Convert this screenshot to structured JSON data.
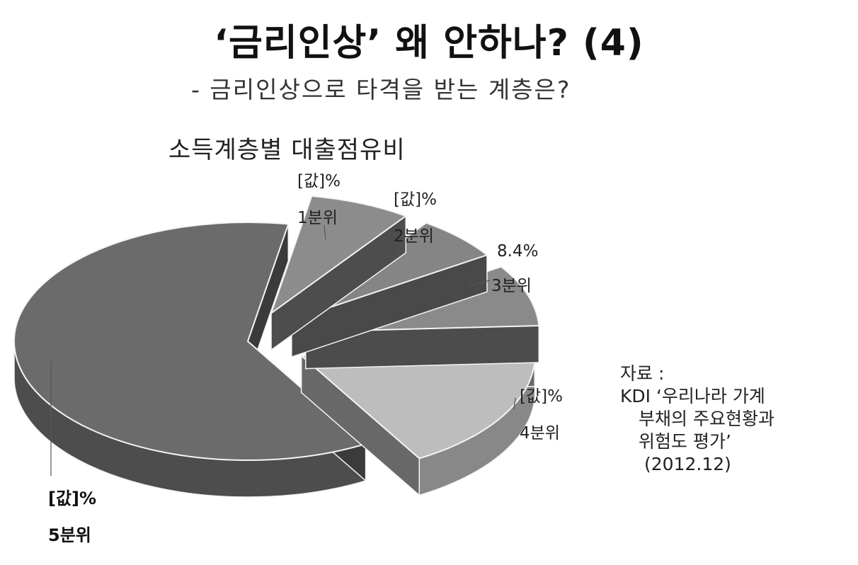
{
  "header": {
    "title": "‘금리인상’  왜 안하나? (4)",
    "subtitle": "- 금리인상으로 타격을 받는 계층은?"
  },
  "chart_data": {
    "type": "pie",
    "title": "소득계층별 대출점유비",
    "style": "3d-exploded",
    "categories": [
      "1분위",
      "2분위",
      "3분위",
      "4분위",
      "5분위"
    ],
    "values": [
      7.0,
      6.0,
      8.4,
      17.4,
      61.2
    ],
    "data_labels": [
      "[값]%",
      "[값]%",
      "8.4%",
      "[값]%",
      "[값]%"
    ],
    "colors": [
      "#8c8c8c",
      "#858585",
      "#8a8a8a",
      "#bdbdbd",
      "#6b6b6b"
    ]
  },
  "source": {
    "label": "자료 :",
    "line1": "KDI ‘우리나라 가계",
    "line2": "부채의 주요현황과",
    "line3": "위험도 평가’",
    "line4": "(2012.12)"
  }
}
